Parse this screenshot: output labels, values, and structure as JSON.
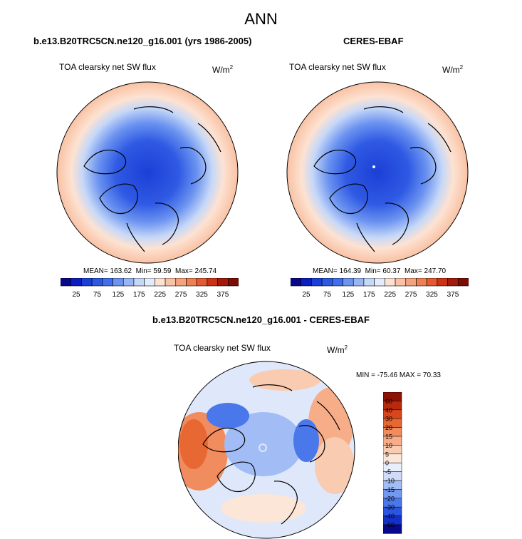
{
  "figure": {
    "title": "ANN",
    "diff_title": "b.e13.B20TRC5CN.ne120_g16.001 - CERES-EBAF"
  },
  "panels": [
    {
      "title": "b.e13.B20TRC5CN.ne120_g16.001 (yrs 1986-2005)",
      "variable": "TOA clearsky net SW flux",
      "unit_base": "W/m",
      "unit_exp": "2",
      "stats": {
        "mean_label": "MEAN=",
        "mean": "163.62",
        "min_label": "Min=",
        "min": "59.59",
        "max_label": "Max=",
        "max": "245.74"
      }
    },
    {
      "title": "CERES-EBAF",
      "variable": "TOA clearsky net SW flux",
      "unit_base": "W/m",
      "unit_exp": "2",
      "stats": {
        "mean_label": "MEAN=",
        "mean": "164.39",
        "min_label": "Min=",
        "min": "60.37",
        "max_label": "Max=",
        "max": "247.70"
      }
    },
    {
      "variable": "TOA clearsky net SW flux",
      "unit_base": "W/m",
      "unit_exp": "2",
      "minmax": "MIN = -75.46 MAX =  70.33"
    }
  ],
  "colorbar_abs": {
    "colors": [
      "#08088c",
      "#0a1ec0",
      "#1b40d8",
      "#2c59e4",
      "#3f6fec",
      "#6b93f0",
      "#98b6f4",
      "#c6d8f8",
      "#e4ecfb",
      "#fde2d2",
      "#f9c2a4",
      "#f5a27e",
      "#ef8054",
      "#e55a30",
      "#cc3315",
      "#a21a0a",
      "#7d0c04"
    ],
    "tick_labels": [
      "25",
      "75",
      "125",
      "175",
      "225",
      "275",
      "325",
      "375"
    ]
  },
  "colorbar_diff": {
    "colors": [
      "#08088c",
      "#1530c8",
      "#2b55e0",
      "#4a77ea",
      "#7299f0",
      "#a2bcf6",
      "#cfdcf9",
      "#e8eefb",
      "#fbe6d8",
      "#f9cbb0",
      "#f6ad88",
      "#f08c5e",
      "#e86834",
      "#d8461b",
      "#b82a0c",
      "#8c1204"
    ],
    "tick_labels": [
      "60",
      "40",
      "30",
      "20",
      "15",
      "10",
      "5",
      "0",
      "-5",
      "-10",
      "-15",
      "-20",
      "-30",
      "-40",
      "-60"
    ]
  },
  "chart_data": [
    {
      "type": "heatmap",
      "projection": "north polar stereographic",
      "title": "b.e13.B20TRC5CN.ne120_g16.001 (yrs 1986-2005)",
      "variable": "TOA clearsky net SW flux",
      "units": "W/m2",
      "mean": 163.62,
      "min": 59.59,
      "max": 245.74,
      "colorbar_levels": [
        25,
        50,
        75,
        100,
        125,
        150,
        175,
        200,
        225,
        250,
        275,
        300,
        325,
        350,
        375
      ]
    },
    {
      "type": "heatmap",
      "projection": "north polar stereographic",
      "title": "CERES-EBAF",
      "variable": "TOA clearsky net SW flux",
      "units": "W/m2",
      "mean": 164.39,
      "min": 60.37,
      "max": 247.7,
      "colorbar_levels": [
        25,
        50,
        75,
        100,
        125,
        150,
        175,
        200,
        225,
        250,
        275,
        300,
        325,
        350,
        375
      ]
    },
    {
      "type": "heatmap",
      "projection": "north polar stereographic",
      "title": "b.e13.B20TRC5CN.ne120_g16.001 - CERES-EBAF",
      "variable": "TOA clearsky net SW flux",
      "units": "W/m2",
      "min": -75.46,
      "max": 70.33,
      "colorbar_levels": [
        -60,
        -40,
        -30,
        -20,
        -15,
        -10,
        -5,
        0,
        5,
        10,
        15,
        20,
        30,
        40,
        60
      ]
    }
  ]
}
